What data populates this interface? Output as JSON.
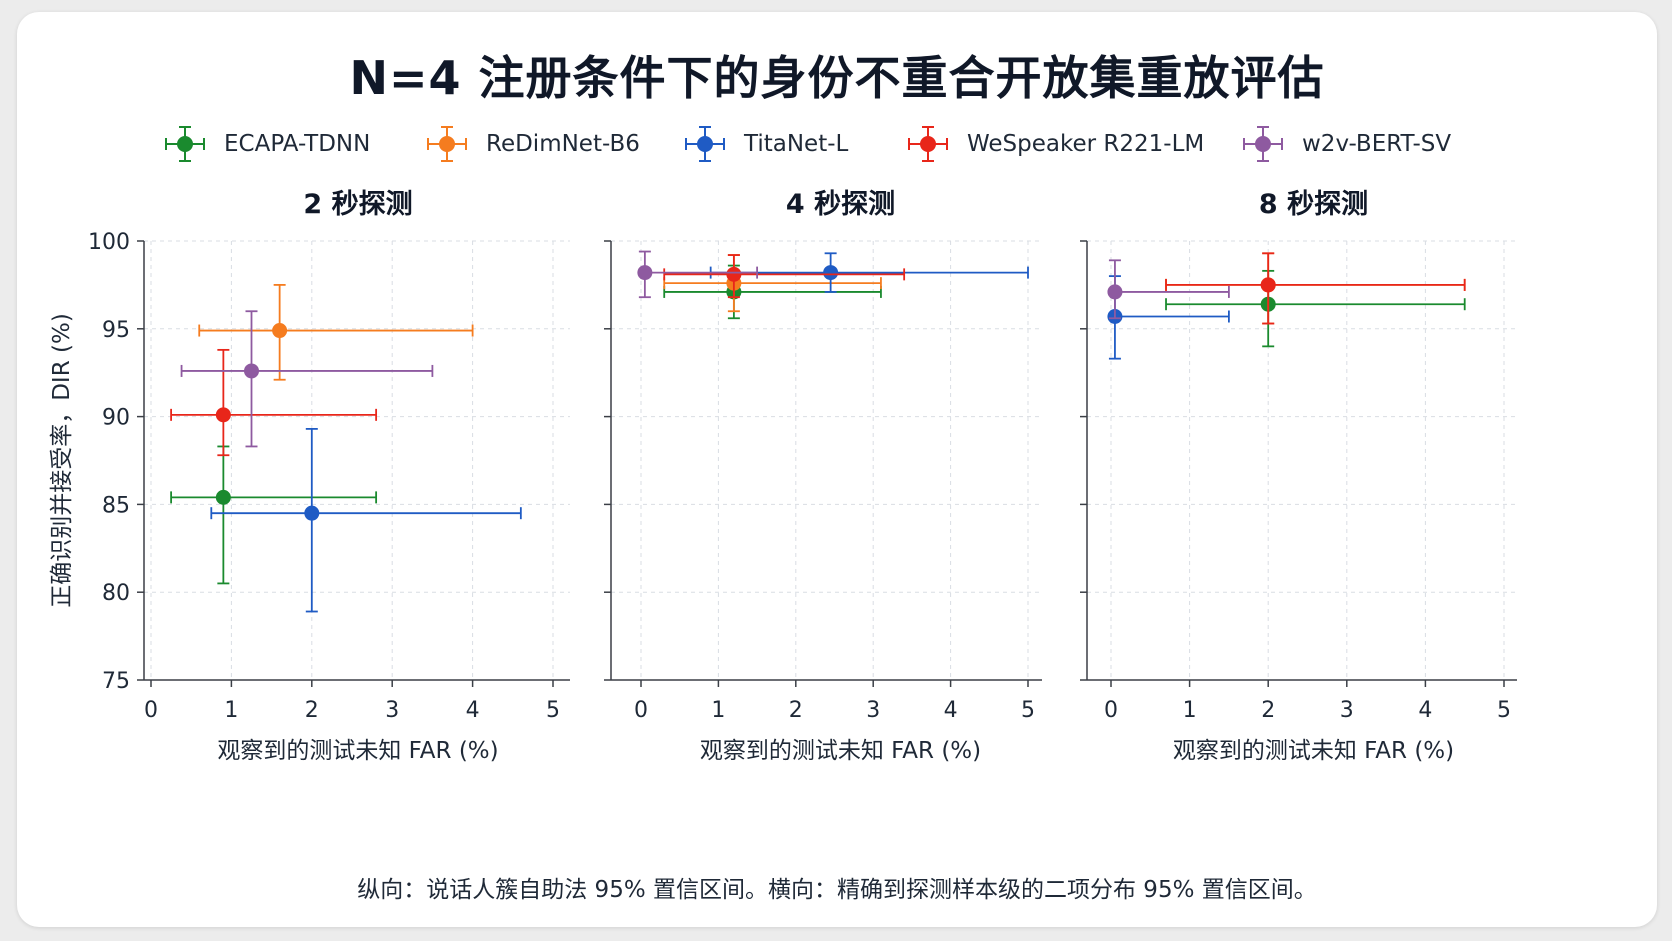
{
  "title": "N=4 注册条件下的身份不重合开放集重放评估",
  "footnote": "纵向：说话人簇自助法 95% 置信区间。横向：精确到探测样本级的二项分布 95% 置信区间。",
  "legend": [
    {
      "name": "ECAPA-TDNN",
      "color": "#1a8a2e"
    },
    {
      "name": "ReDimNet-B6",
      "color": "#f57c1f"
    },
    {
      "name": "TitaNet-L",
      "color": "#1f5bc4"
    },
    {
      "name": "WeSpeaker R221-LM",
      "color": "#e8261a"
    },
    {
      "name": "w2v-BERT-SV",
      "color": "#8e5aa0"
    }
  ],
  "chart_data": [
    {
      "type": "scatter",
      "title": "2 秒探测",
      "xlabel": "观察到的测试未知 FAR (%)",
      "ylabel": "正确识别并接受率，DIR (%)",
      "xlim": [
        0,
        5
      ],
      "ylim": [
        75,
        100
      ],
      "xticks": [
        0,
        1,
        2,
        3,
        4,
        5
      ],
      "yticks": [
        75,
        80,
        85,
        90,
        95,
        100
      ],
      "grid": true,
      "points": [
        {
          "series": "ECAPA-TDNN",
          "x": 0.9,
          "y": 85.4,
          "xerr": [
            0.25,
            2.8
          ],
          "yerr": [
            80.5,
            88.3
          ]
        },
        {
          "series": "ReDimNet-B6",
          "x": 1.6,
          "y": 94.9,
          "xerr": [
            0.6,
            4.0
          ],
          "yerr": [
            92.1,
            97.5
          ]
        },
        {
          "series": "TitaNet-L",
          "x": 2.0,
          "y": 84.5,
          "xerr": [
            0.75,
            4.6
          ],
          "yerr": [
            78.9,
            89.3
          ]
        },
        {
          "series": "WeSpeaker R221-LM",
          "x": 0.9,
          "y": 90.1,
          "xerr": [
            0.25,
            2.8
          ],
          "yerr": [
            87.8,
            93.8
          ]
        },
        {
          "series": "w2v-BERT-SV",
          "x": 1.25,
          "y": 92.6,
          "xerr": [
            0.38,
            3.5
          ],
          "yerr": [
            88.3,
            96.0
          ]
        }
      ]
    },
    {
      "type": "scatter",
      "title": "4 秒探测",
      "xlabel": "观察到的测试未知 FAR (%)",
      "ylabel": "",
      "xlim": [
        0,
        5
      ],
      "ylim": [
        75,
        100
      ],
      "xticks": [
        0,
        1,
        2,
        3,
        4,
        5
      ],
      "yticks": [
        75,
        80,
        85,
        90,
        95,
        100
      ],
      "grid": true,
      "points": [
        {
          "series": "ECAPA-TDNN",
          "x": 1.2,
          "y": 97.1,
          "xerr": [
            0.3,
            3.1
          ],
          "yerr": [
            95.6,
            98.6
          ]
        },
        {
          "series": "ReDimNet-B6",
          "x": 1.2,
          "y": 97.6,
          "xerr": [
            0.3,
            3.1
          ],
          "yerr": [
            96.0,
            99.2
          ]
        },
        {
          "series": "TitaNet-L",
          "x": 2.45,
          "y": 98.2,
          "xerr": [
            0.9,
            5.0
          ],
          "yerr": [
            97.1,
            99.3
          ]
        },
        {
          "series": "WeSpeaker R221-LM",
          "x": 1.2,
          "y": 98.1,
          "xerr": [
            0.3,
            3.4
          ],
          "yerr": [
            96.8,
            99.2
          ]
        },
        {
          "series": "w2v-BERT-SV",
          "x": 0.05,
          "y": 98.2,
          "xerr": [
            0.0,
            1.5
          ],
          "yerr": [
            96.8,
            99.4
          ]
        }
      ]
    },
    {
      "type": "scatter",
      "title": "8 秒探测",
      "xlabel": "观察到的测试未知 FAR (%)",
      "ylabel": "",
      "xlim": [
        0,
        5
      ],
      "ylim": [
        75,
        100
      ],
      "xticks": [
        0,
        1,
        2,
        3,
        4,
        5
      ],
      "yticks": [
        75,
        80,
        85,
        90,
        95,
        100
      ],
      "grid": true,
      "points": [
        {
          "series": "ECAPA-TDNN",
          "x": 2.0,
          "y": 96.4,
          "xerr": [
            0.7,
            4.5
          ],
          "yerr": [
            94.0,
            98.3
          ]
        },
        {
          "series": "ReDimNet-B6",
          "x": 2.0,
          "y": 97.5,
          "xerr": [
            0.7,
            4.5
          ],
          "yerr": [
            95.3,
            99.3
          ]
        },
        {
          "series": "TitaNet-L",
          "x": 0.05,
          "y": 95.7,
          "xerr": [
            0.0,
            1.5
          ],
          "yerr": [
            93.3,
            98.0
          ]
        },
        {
          "series": "WeSpeaker R221-LM",
          "x": 2.0,
          "y": 97.5,
          "xerr": [
            0.7,
            4.5
          ],
          "yerr": [
            95.3,
            99.3
          ]
        },
        {
          "series": "w2v-BERT-SV",
          "x": 0.05,
          "y": 97.1,
          "xerr": [
            0.0,
            1.5
          ],
          "yerr": [
            95.6,
            98.9
          ]
        }
      ]
    }
  ]
}
